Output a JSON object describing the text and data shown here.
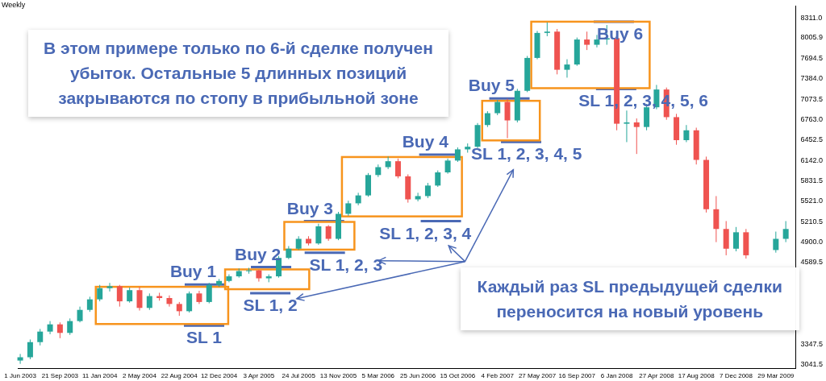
{
  "chart_data": {
    "type": "candlestick",
    "title": "Weekly",
    "x": [
      "2003-06-01",
      "2003-06-29",
      "2003-07-27",
      "2003-08-24",
      "2003-09-21",
      "2003-10-19",
      "2003-11-16",
      "2003-12-14",
      "2004-01-11",
      "2004-02-08",
      "2004-03-07",
      "2004-04-04",
      "2004-05-02",
      "2004-05-30",
      "2004-06-27",
      "2004-07-25",
      "2004-08-22",
      "2004-09-19",
      "2004-10-17",
      "2004-11-14",
      "2004-12-12",
      "2005-01-09",
      "2005-02-06",
      "2005-03-06",
      "2005-04-03",
      "2005-05-01",
      "2005-05-29",
      "2005-06-26",
      "2005-07-24",
      "2005-08-21",
      "2005-09-18",
      "2005-10-16",
      "2005-11-13",
      "2005-12-11",
      "2006-01-08",
      "2006-02-05",
      "2006-03-05",
      "2006-04-02",
      "2006-04-30",
      "2006-05-28",
      "2006-06-25",
      "2006-07-23",
      "2006-08-20",
      "2006-09-17",
      "2006-10-15",
      "2006-11-12",
      "2006-12-10",
      "2007-01-07",
      "2007-02-04",
      "2007-03-04",
      "2007-04-01",
      "2007-04-29",
      "2007-05-27",
      "2007-06-24",
      "2007-07-22",
      "2007-08-19",
      "2007-09-16",
      "2007-10-14",
      "2007-11-11",
      "2007-12-09",
      "2008-01-06",
      "2008-02-03",
      "2008-03-02",
      "2008-03-30",
      "2008-04-27",
      "2008-05-25",
      "2008-06-22",
      "2008-07-20",
      "2008-08-17",
      "2008-09-14",
      "2008-10-12",
      "2008-11-09",
      "2008-12-07",
      "2009-01-04",
      "2009-03-29",
      "2009-04-26"
    ],
    "ohlc": [
      [
        3100,
        3200,
        3050,
        3150
      ],
      [
        3150,
        3420,
        3120,
        3380
      ],
      [
        3380,
        3580,
        3330,
        3540
      ],
      [
        3540,
        3700,
        3500,
        3650
      ],
      [
        3650,
        3680,
        3440,
        3520
      ],
      [
        3520,
        3740,
        3490,
        3700
      ],
      [
        3700,
        3920,
        3680,
        3870
      ],
      [
        3870,
        4070,
        3840,
        4030
      ],
      [
        4030,
        4250,
        4000,
        4200
      ],
      [
        4200,
        4280,
        4150,
        4230
      ],
      [
        4230,
        4250,
        3920,
        4000
      ],
      [
        4000,
        4210,
        3980,
        4170
      ],
      [
        4170,
        4220,
        3860,
        3900
      ],
      [
        3900,
        4120,
        3870,
        4080
      ],
      [
        4080,
        4130,
        4010,
        4050
      ],
      [
        4050,
        4090,
        3920,
        3960
      ],
      [
        3960,
        3990,
        3780,
        3850
      ],
      [
        3850,
        4150,
        3830,
        4120
      ],
      [
        4120,
        4160,
        3960,
        3990
      ],
      [
        3990,
        4280,
        3970,
        4250
      ],
      [
        4250,
        4340,
        4220,
        4310
      ],
      [
        4310,
        4410,
        4290,
        4380
      ],
      [
        4380,
        4500,
        4360,
        4460
      ],
      [
        4460,
        4510,
        4420,
        4470
      ],
      [
        4470,
        4480,
        4300,
        4350
      ],
      [
        4350,
        4410,
        4290,
        4380
      ],
      [
        4380,
        4690,
        4360,
        4660
      ],
      [
        4660,
        4840,
        4640,
        4800
      ],
      [
        4800,
        4990,
        4780,
        4950
      ],
      [
        4950,
        4990,
        4850,
        4880
      ],
      [
        4880,
        5180,
        4860,
        5140
      ],
      [
        5140,
        5160,
        4920,
        4950
      ],
      [
        4950,
        5360,
        4930,
        5330
      ],
      [
        5330,
        5530,
        5300,
        5490
      ],
      [
        5490,
        5650,
        5460,
        5610
      ],
      [
        5610,
        5950,
        5590,
        5920
      ],
      [
        5920,
        6080,
        5890,
        6040
      ],
      [
        6040,
        6200,
        6010,
        6130
      ],
      [
        6130,
        6170,
        5870,
        5900
      ],
      [
        5900,
        5930,
        5500,
        5550
      ],
      [
        5550,
        5650,
        5520,
        5600
      ],
      [
        5600,
        5800,
        5570,
        5760
      ],
      [
        5760,
        5990,
        5740,
        5960
      ],
      [
        5960,
        6170,
        5940,
        6140
      ],
      [
        6140,
        6340,
        6120,
        6310
      ],
      [
        6310,
        6400,
        6260,
        6350
      ],
      [
        6350,
        6710,
        6330,
        6680
      ],
      [
        6680,
        6890,
        6650,
        6860
      ],
      [
        6860,
        7060,
        6830,
        7030
      ],
      [
        7030,
        7080,
        6480,
        6750
      ],
      [
        6750,
        7230,
        6720,
        7200
      ],
      [
        7200,
        7730,
        7180,
        7700
      ],
      [
        7700,
        8110,
        7680,
        8080
      ],
      [
        8080,
        8240,
        8030,
        8100
      ],
      [
        8100,
        8140,
        7450,
        7520
      ],
      [
        7520,
        7680,
        7400,
        7600
      ],
      [
        7600,
        8010,
        7580,
        7980
      ],
      [
        7980,
        8100,
        7820,
        7900
      ],
      [
        7900,
        8050,
        7860,
        7980
      ],
      [
        7980,
        8200,
        7900,
        8000
      ],
      [
        8000,
        8020,
        6600,
        6700
      ],
      [
        6700,
        6900,
        6420,
        6720
      ],
      [
        6720,
        6780,
        6240,
        6650
      ],
      [
        6650,
        7000,
        6600,
        6950
      ],
      [
        6950,
        7290,
        6920,
        7220
      ],
      [
        7220,
        7250,
        6760,
        6800
      ],
      [
        6800,
        6850,
        6380,
        6450
      ],
      [
        6450,
        6680,
        6420,
        6600
      ],
      [
        6600,
        6640,
        6080,
        6150
      ],
      [
        6150,
        6200,
        5350,
        5400
      ],
      [
        5400,
        5600,
        4900,
        5100
      ],
      [
        5100,
        5220,
        4700,
        4800
      ],
      [
        4800,
        5130,
        4760,
        5050
      ],
      [
        5050,
        5100,
        4650,
        4700
      ],
      [
        4780,
        5060,
        4740,
        4950
      ],
      [
        4950,
        5220,
        4900,
        5100
      ]
    ],
    "colors": [
      "#26a69a",
      "#26a69a",
      "#26a69a",
      "#26a69a",
      "#ef5350",
      "#26a69a",
      "#26a69a",
      "#26a69a",
      "#26a69a",
      "#26a69a",
      "#ef5350",
      "#26a69a",
      "#ef5350",
      "#26a69a",
      "#ef5350",
      "#ef5350",
      "#ef5350",
      "#26a69a",
      "#ef5350",
      "#26a69a",
      "#26a69a",
      "#26a69a",
      "#26a69a",
      "#26a69a",
      "#ef5350",
      "#26a69a",
      "#26a69a",
      "#26a69a",
      "#26a69a",
      "#ef5350",
      "#26a69a",
      "#ef5350",
      "#26a69a",
      "#26a69a",
      "#26a69a",
      "#26a69a",
      "#26a69a",
      "#26a69a",
      "#ef5350",
      "#ef5350",
      "#26a69a",
      "#26a69a",
      "#26a69a",
      "#26a69a",
      "#26a69a",
      "#26a69a",
      "#26a69a",
      "#26a69a",
      "#26a69a",
      "#ef5350",
      "#26a69a",
      "#26a69a",
      "#26a69a",
      "#26a69a",
      "#ef5350",
      "#26a69a",
      "#26a69a",
      "#ef5350",
      "#26a69a",
      "#26a69a",
      "#ef5350",
      "#26a69a",
      "#ef5350",
      "#26a69a",
      "#26a69a",
      "#ef5350",
      "#ef5350",
      "#26a69a",
      "#ef5350",
      "#ef5350",
      "#ef5350",
      "#ef5350",
      "#26a69a",
      "#ef5350",
      "#26a69a",
      "#26a69a"
    ],
    "xlim": [
      "2003-05-25",
      "2009-05-24"
    ],
    "xticks": [
      {
        "value": "2003-06-01",
        "label": "1 Jun 2003"
      },
      {
        "value": "2003-09-21",
        "label": "21 Sep 2003"
      },
      {
        "value": "2004-01-11",
        "label": "11 Jan 2004"
      },
      {
        "value": "2004-05-02",
        "label": "2 May 2004"
      },
      {
        "value": "2004-08-22",
        "label": "22 Aug 2004"
      },
      {
        "value": "2004-12-12",
        "label": "12 Dec 2004"
      },
      {
        "value": "2005-04-03",
        "label": "3 Apr 2005"
      },
      {
        "value": "2005-07-24",
        "label": "24 Jul 2005"
      },
      {
        "value": "2005-11-13",
        "label": "13 Nov 2005"
      },
      {
        "value": "2006-03-05",
        "label": "5 Mar 2006"
      },
      {
        "value": "2006-06-25",
        "label": "25 Jun 2006"
      },
      {
        "value": "2006-10-15",
        "label": "15 Oct 2006"
      },
      {
        "value": "2007-02-04",
        "label": "4 Feb 2007"
      },
      {
        "value": "2007-05-27",
        "label": "27 May 2007"
      },
      {
        "value": "2007-09-16",
        "label": "16 Sep 2007"
      },
      {
        "value": "2008-01-06",
        "label": "6 Jan 2008"
      },
      {
        "value": "2008-04-27",
        "label": "27 Apr 2008"
      },
      {
        "value": "2008-08-17",
        "label": "17 Aug 2008"
      },
      {
        "value": "2008-12-07",
        "label": "7 Dec 2008"
      },
      {
        "value": "2009-03-29",
        "label": "29 Mar 2009"
      }
    ],
    "ylim": [
      2980,
      8490
    ],
    "yticks": [
      {
        "value": 8311,
        "label": "8311.0"
      },
      {
        "value": 8005.9,
        "label": "8005.9"
      },
      {
        "value": 7694.5,
        "label": "7694.5"
      },
      {
        "value": 7384,
        "label": "7384.0"
      },
      {
        "value": 7073.5,
        "label": "7073.5"
      },
      {
        "value": 6763,
        "label": "6763.0"
      },
      {
        "value": 6452.5,
        "label": "6452.5"
      },
      {
        "value": 6142,
        "label": "6142.0"
      },
      {
        "value": 5831.5,
        "label": "5831.5"
      },
      {
        "value": 5521,
        "label": "5521.0"
      },
      {
        "value": 5210.5,
        "label": "5210.5"
      },
      {
        "value": 4900,
        "label": "4900.0"
      },
      {
        "value": 4589.5,
        "label": "4589.5"
      },
      {
        "value": 3347.5,
        "label": "3347.5"
      },
      {
        "value": 3041.5,
        "label": "3041.5"
      }
    ],
    "annotations": [
      "Buy 1",
      "SL 1",
      "Buy 2",
      "SL 1, 2",
      "Buy 3",
      "SL 1, 2, 3",
      "Buy 4",
      "SL 1, 2, 3, 4",
      "Buy 5",
      "SL 1, 2, 3, 4, 5",
      "Buy 6",
      "SL 1, 2, 3, 4, 5, 6",
      "В этом примере только по 6-й сделке получен убыток. Остальные 5 длинных позиций закрываются по стопу в прибыльной зоне",
      "Каждый раз SL предыдущей сделки переносится на новый уровень"
    ]
  }
}
